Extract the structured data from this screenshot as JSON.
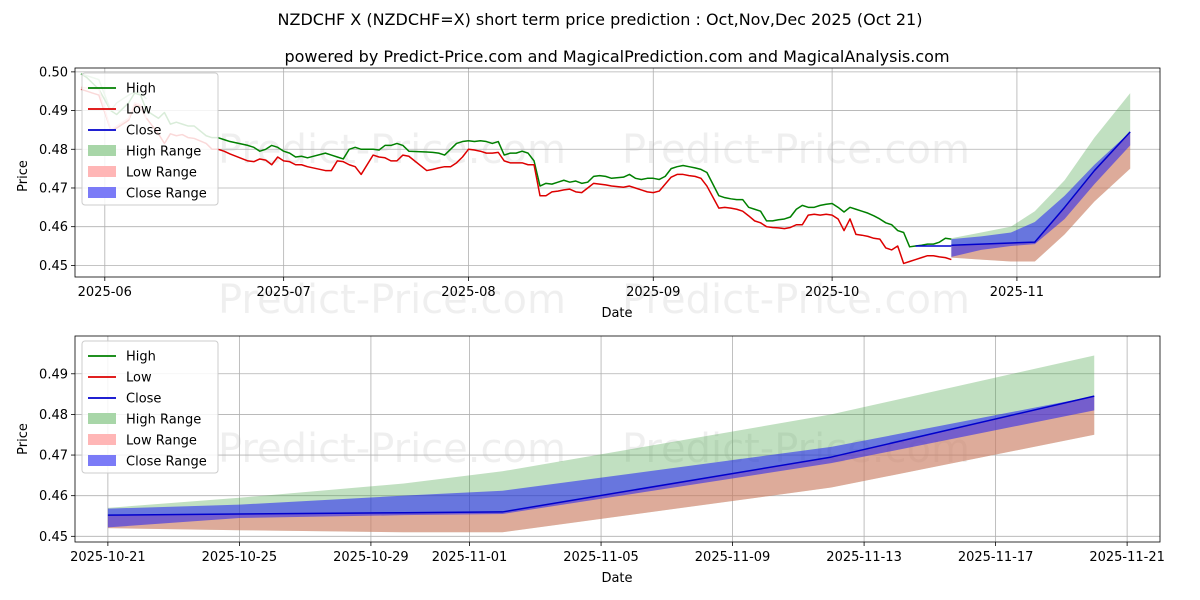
{
  "chart_data": [
    {
      "type": "line",
      "title": "NZDCHF X (NZDCHF=X) short term price prediction : Oct,Nov,Dec 2025 (Oct 21)",
      "subtitle": "powered by Predict-Price.com and MagicalPrediction.com and MagicalAnalysis.com",
      "xlabel": "Date",
      "ylabel": "Price",
      "xlim": [
        "2025-05-27",
        "2025-11-25"
      ],
      "ylim": [
        0.447,
        0.501
      ],
      "x_ticks": [
        "2025-06",
        "2025-07",
        "2025-08",
        "2025-09",
        "2025-10",
        "2025-11"
      ],
      "y_ticks": [
        "0.45",
        "0.46",
        "0.47",
        "0.48",
        "0.49",
        "0.50"
      ],
      "grid": true,
      "legend": [
        "High",
        "Low",
        "Close",
        "High Range",
        "Low Range",
        "Close Range"
      ],
      "legend_position": "top-left",
      "watermark": "Predict-Price.com",
      "series": [
        {
          "name": "High",
          "color": "#008000",
          "x": [
            0,
            1,
            2,
            3,
            5,
            6,
            8,
            9,
            10,
            11,
            12,
            13,
            14,
            15,
            16,
            17,
            18,
            19,
            21,
            22,
            23,
            24,
            25,
            28,
            29,
            30,
            31,
            32,
            33,
            34,
            35,
            36,
            37,
            38,
            41,
            42,
            43,
            44,
            45,
            46,
            47,
            49,
            50,
            51,
            52,
            53,
            54,
            55,
            58,
            59,
            60,
            61,
            62,
            63,
            64,
            65,
            66,
            67,
            68,
            69,
            70,
            71,
            72,
            73,
            74,
            75,
            76,
            77,
            78,
            79,
            80,
            81,
            82,
            83,
            84,
            85,
            86,
            87,
            88,
            89,
            91,
            92,
            93,
            94,
            95,
            96,
            97,
            98,
            99,
            100,
            101,
            102,
            103,
            104,
            105,
            107,
            108,
            109,
            110,
            111,
            112,
            113,
            114,
            115,
            116,
            117,
            118,
            119,
            120,
            121,
            122,
            123,
            124,
            125,
            126,
            127,
            128,
            129,
            130,
            131,
            132,
            133,
            134,
            135,
            136,
            137,
            138,
            139,
            140,
            141,
            142,
            143,
            144,
            145,
            146
          ],
          "y": [
            0.4995,
            0.4985,
            0.497,
            0.4955,
            0.49,
            0.489,
            0.492,
            0.4945,
            0.494,
            0.49,
            0.489,
            0.488,
            0.4895,
            0.4865,
            0.487,
            0.4865,
            0.486,
            0.486,
            0.4835,
            0.483,
            0.483,
            0.4825,
            0.482,
            0.481,
            0.4805,
            0.4795,
            0.48,
            0.481,
            0.4805,
            0.4795,
            0.479,
            0.478,
            0.4782,
            0.4778,
            0.479,
            0.4785,
            0.478,
            0.4775,
            0.48,
            0.4805,
            0.48,
            0.48,
            0.4798,
            0.481,
            0.481,
            0.4815,
            0.481,
            0.4795,
            0.4793,
            0.4792,
            0.479,
            0.4785,
            0.48,
            0.4815,
            0.482,
            0.4822,
            0.482,
            0.4822,
            0.482,
            0.4815,
            0.482,
            0.4785,
            0.479,
            0.479,
            0.4795,
            0.479,
            0.477,
            0.4705,
            0.4712,
            0.471,
            0.4715,
            0.472,
            0.4715,
            0.4718,
            0.4712,
            0.4715,
            0.473,
            0.4732,
            0.473,
            0.4725,
            0.4728,
            0.4735,
            0.4725,
            0.4722,
            0.4725,
            0.4725,
            0.4722,
            0.473,
            0.475,
            0.4755,
            0.4758,
            0.4755,
            0.4752,
            0.4748,
            0.474,
            0.468,
            0.4675,
            0.4672,
            0.467,
            0.467,
            0.465,
            0.4645,
            0.464,
            0.4615,
            0.4615,
            0.4618,
            0.462,
            0.4625,
            0.4645,
            0.4655,
            0.465,
            0.465,
            0.4655,
            0.4658,
            0.466,
            0.465,
            0.4638,
            0.465,
            0.4645,
            0.464,
            0.4635,
            0.4628,
            0.462,
            0.461,
            0.4605,
            0.459,
            0.4585,
            0.4548,
            0.455,
            0.4552,
            0.4555,
            0.4555,
            0.456,
            0.457,
            0.4568
          ]
        },
        {
          "name": "Low",
          "color": "#dd0000",
          "x": [
            0,
            1,
            2,
            3,
            5,
            6,
            8,
            9,
            10,
            11,
            12,
            13,
            14,
            15,
            16,
            17,
            18,
            19,
            21,
            22,
            23,
            24,
            25,
            28,
            29,
            30,
            31,
            32,
            33,
            34,
            35,
            36,
            37,
            38,
            41,
            42,
            43,
            44,
            45,
            46,
            47,
            49,
            50,
            51,
            52,
            53,
            54,
            55,
            58,
            59,
            60,
            61,
            62,
            63,
            64,
            65,
            66,
            67,
            68,
            69,
            70,
            71,
            72,
            73,
            74,
            75,
            76,
            77,
            78,
            79,
            80,
            81,
            82,
            83,
            84,
            85,
            86,
            87,
            88,
            89,
            91,
            92,
            93,
            94,
            95,
            96,
            97,
            98,
            99,
            100,
            101,
            102,
            103,
            104,
            105,
            107,
            108,
            109,
            110,
            111,
            112,
            113,
            114,
            115,
            116,
            117,
            118,
            119,
            120,
            121,
            122,
            123,
            124,
            125,
            126,
            127,
            128,
            129,
            130,
            131,
            132,
            133,
            134,
            135,
            136,
            137,
            138,
            139,
            140,
            141,
            142,
            143,
            144,
            145,
            146
          ],
          "y": [
            0.4955,
            0.495,
            0.4945,
            0.494,
            0.485,
            0.4855,
            0.4875,
            0.4915,
            0.491,
            0.488,
            0.486,
            0.484,
            0.4815,
            0.484,
            0.4835,
            0.4838,
            0.483,
            0.4828,
            0.4815,
            0.48,
            0.48,
            0.4795,
            0.4788,
            0.477,
            0.4768,
            0.4775,
            0.4772,
            0.476,
            0.478,
            0.477,
            0.4768,
            0.476,
            0.476,
            0.4755,
            0.4745,
            0.4745,
            0.477,
            0.4768,
            0.476,
            0.4755,
            0.4735,
            0.4785,
            0.478,
            0.4778,
            0.477,
            0.477,
            0.4785,
            0.4782,
            0.4745,
            0.4748,
            0.4752,
            0.4755,
            0.4755,
            0.4765,
            0.478,
            0.48,
            0.4798,
            0.4795,
            0.479,
            0.479,
            0.4792,
            0.477,
            0.4765,
            0.4765,
            0.4765,
            0.476,
            0.476,
            0.468,
            0.468,
            0.469,
            0.4692,
            0.4695,
            0.4697,
            0.469,
            0.4688,
            0.47,
            0.4712,
            0.471,
            0.4708,
            0.4705,
            0.4702,
            0.4705,
            0.47,
            0.4695,
            0.469,
            0.4688,
            0.4692,
            0.471,
            0.4728,
            0.4735,
            0.4735,
            0.4732,
            0.473,
            0.4725,
            0.4705,
            0.4648,
            0.465,
            0.4648,
            0.4645,
            0.464,
            0.4628,
            0.4615,
            0.461,
            0.46,
            0.4598,
            0.4597,
            0.4595,
            0.4598,
            0.4605,
            0.4605,
            0.463,
            0.4632,
            0.463,
            0.4632,
            0.463,
            0.462,
            0.459,
            0.462,
            0.458,
            0.4578,
            0.4575,
            0.457,
            0.4568,
            0.4545,
            0.454,
            0.455,
            0.4505,
            0.451,
            0.4515,
            0.452,
            0.4525,
            0.4525,
            0.4522,
            0.452,
            0.4515
          ]
        },
        {
          "name": "Close",
          "color": "#0000cc",
          "x": [
            140,
            145,
            146
          ],
          "y": [
            0.455,
            0.455,
            0.455
          ]
        },
        {
          "name": "High Range",
          "color": "#90c890",
          "x": [
            0,
            3,
            5,
            6,
            8,
            9,
            10,
            11
          ],
          "y": [
            0.4995,
            0.498,
            0.49,
            0.492,
            0.494,
            0.4948,
            0.4945,
            0.493
          ]
        },
        {
          "name": "Low Range",
          "color": "#ffb0b0",
          "x": [
            0,
            3,
            5,
            6,
            8,
            9,
            10,
            11
          ],
          "y": [
            0.496,
            0.4955,
            0.485,
            0.486,
            0.488,
            0.492,
            0.4915,
            0.488
          ]
        }
      ],
      "forecast": {
        "x": [
          146,
          151,
          156,
          160,
          165,
          170,
          176
        ],
        "high": [
          0.457,
          0.4585,
          0.46,
          0.464,
          0.472,
          0.483,
          0.4945
        ],
        "low": [
          0.452,
          0.4515,
          0.451,
          0.451,
          0.458,
          0.4665,
          0.475
        ],
        "close_upper": [
          0.4568,
          0.4575,
          0.4585,
          0.4612,
          0.468,
          0.476,
          0.4845
        ],
        "close_lower": [
          0.4522,
          0.454,
          0.455,
          0.4555,
          0.462,
          0.471,
          0.481
        ],
        "close": [
          0.4552,
          0.4555,
          0.4558,
          0.456,
          0.465,
          0.4745,
          0.4845
        ]
      }
    },
    {
      "type": "line",
      "xlabel": "Date",
      "ylabel": "Price",
      "xlim": [
        "2025-10-20",
        "2025-11-22"
      ],
      "ylim": [
        0.4486,
        0.4993
      ],
      "x_ticks": [
        "2025-10-21",
        "2025-10-25",
        "2025-10-29",
        "2025-11-01",
        "2025-11-05",
        "2025-11-09",
        "2025-11-13",
        "2025-11-17",
        "2025-11-21"
      ],
      "y_ticks": [
        "0.45",
        "0.46",
        "0.47",
        "0.48",
        "0.49"
      ],
      "grid": true,
      "legend": [
        "High",
        "Low",
        "Close",
        "High Range",
        "Low Range",
        "Close Range"
      ],
      "legend_position": "top-left",
      "watermark": "Predict-Price.com",
      "forecast": {
        "x": [
          1,
          5,
          10,
          13,
          23,
          31
        ],
        "high": [
          0.457,
          0.4595,
          0.463,
          0.466,
          0.48,
          0.4945
        ],
        "low": [
          0.452,
          0.4515,
          0.451,
          0.451,
          0.462,
          0.475
        ],
        "close_upper": [
          0.4568,
          0.4578,
          0.46,
          0.4612,
          0.472,
          0.4845
        ],
        "close_lower": [
          0.4522,
          0.4545,
          0.4552,
          0.4555,
          0.468,
          0.481
        ],
        "close": [
          0.4552,
          0.4555,
          0.4558,
          0.456,
          0.4695,
          0.4845
        ]
      },
      "series": [
        {
          "name": "High",
          "color": "#008000"
        },
        {
          "name": "Low",
          "color": "#dd0000"
        },
        {
          "name": "Close",
          "color": "#0000cc"
        },
        {
          "name": "High Range",
          "color": "#90c890"
        },
        {
          "name": "Low Range",
          "color": "#ffb0b0"
        },
        {
          "name": "Close Range",
          "color": "#6a6af8"
        }
      ]
    }
  ]
}
